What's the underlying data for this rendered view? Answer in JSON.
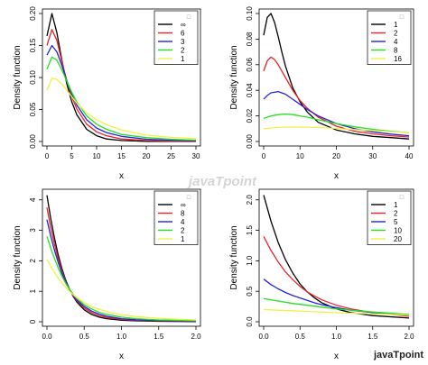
{
  "watermark": {
    "center_text": "javaTpoint",
    "corner_text": "javaTpoint"
  },
  "colors": {
    "black": "#000000",
    "red": "#e8232a",
    "blue": "#2424d6",
    "green": "#22e022",
    "yellow": "#f0f04a",
    "light_green": "#7ae07a"
  },
  "chart_data": [
    {
      "type": "line",
      "xlabel": "x",
      "ylabel": "Density function",
      "xlim": [
        0,
        30
      ],
      "ylim": [
        0,
        0.2
      ],
      "xticks": [
        "0",
        "5",
        "10",
        "15",
        "20",
        "25",
        "30"
      ],
      "yticks": [
        "0.00",
        "0.05",
        "0.10",
        "0.15",
        "0.20"
      ],
      "legend_title": "□",
      "legend_position": "top-right",
      "series": [
        {
          "name": "∞",
          "color": "#000000",
          "x": [
            0,
            1,
            2,
            3,
            4,
            5,
            6,
            8,
            10,
            12,
            15,
            20,
            25,
            30
          ],
          "y": [
            0.165,
            0.2,
            0.17,
            0.127,
            0.09,
            0.062,
            0.042,
            0.019,
            0.009,
            0.004,
            0.0015,
            0.0003,
            0.0001,
            0.0
          ]
        },
        {
          "name": "6",
          "color": "#e8232a",
          "x": [
            0,
            1,
            2,
            3,
            4,
            5,
            6,
            8,
            10,
            12,
            15,
            20,
            25,
            30
          ],
          "y": [
            0.15,
            0.175,
            0.158,
            0.125,
            0.095,
            0.07,
            0.051,
            0.027,
            0.015,
            0.009,
            0.004,
            0.0015,
            0.0007,
            0.0003
          ]
        },
        {
          "name": "3",
          "color": "#2424d6",
          "x": [
            0,
            1,
            2,
            3,
            4,
            5,
            6,
            8,
            10,
            12,
            15,
            20,
            25,
            30
          ],
          "y": [
            0.135,
            0.15,
            0.14,
            0.119,
            0.095,
            0.074,
            0.057,
            0.034,
            0.021,
            0.014,
            0.008,
            0.0035,
            0.002,
            0.001
          ]
        },
        {
          "name": "2",
          "color": "#22e022",
          "x": [
            0,
            1,
            2,
            3,
            4,
            5,
            6,
            8,
            10,
            12,
            15,
            20,
            25,
            30
          ],
          "y": [
            0.113,
            0.132,
            0.127,
            0.112,
            0.094,
            0.077,
            0.062,
            0.04,
            0.027,
            0.019,
            0.011,
            0.006,
            0.0035,
            0.002
          ]
        },
        {
          "name": "1",
          "color": "#f0f04a",
          "x": [
            0,
            1,
            2,
            3,
            4,
            5,
            6,
            8,
            10,
            12,
            15,
            20,
            25,
            30
          ],
          "y": [
            0.08,
            0.099,
            0.097,
            0.09,
            0.08,
            0.07,
            0.06,
            0.045,
            0.034,
            0.026,
            0.018,
            0.01,
            0.0065,
            0.0045
          ]
        }
      ]
    },
    {
      "type": "line",
      "xlabel": "x",
      "ylabel": "Density function",
      "xlim": [
        0,
        40
      ],
      "ylim": [
        0,
        0.1
      ],
      "xticks": [
        "0",
        "10",
        "20",
        "30",
        "40"
      ],
      "yticks": [
        "0.00",
        "0.02",
        "0.04",
        "0.06",
        "0.08",
        "0.10"
      ],
      "legend_title": "□",
      "legend_position": "top-right",
      "series": [
        {
          "name": "1",
          "color": "#000000",
          "x": [
            0,
            1,
            2,
            3,
            4,
            5,
            6,
            8,
            10,
            12,
            15,
            20,
            25,
            30,
            35,
            40
          ],
          "y": [
            0.083,
            0.097,
            0.1,
            0.093,
            0.082,
            0.07,
            0.059,
            0.042,
            0.031,
            0.023,
            0.015,
            0.009,
            0.006,
            0.004,
            0.003,
            0.002
          ]
        },
        {
          "name": "2",
          "color": "#e8232a",
          "x": [
            0,
            1,
            2,
            3,
            4,
            5,
            6,
            8,
            10,
            12,
            15,
            20,
            25,
            30,
            35,
            40
          ],
          "y": [
            0.055,
            0.063,
            0.066,
            0.064,
            0.06,
            0.055,
            0.05,
            0.04,
            0.032,
            0.026,
            0.019,
            0.012,
            0.008,
            0.006,
            0.0045,
            0.0035
          ]
        },
        {
          "name": "4",
          "color": "#2424d6",
          "x": [
            0,
            1,
            2,
            4,
            6,
            8,
            10,
            12,
            15,
            20,
            25,
            30,
            35,
            40
          ],
          "y": [
            0.033,
            0.036,
            0.038,
            0.039,
            0.037,
            0.033,
            0.029,
            0.025,
            0.02,
            0.014,
            0.01,
            0.0075,
            0.0058,
            0.0045
          ]
        },
        {
          "name": "8",
          "color": "#22e022",
          "x": [
            0,
            2,
            4,
            6,
            8,
            10,
            12,
            15,
            20,
            25,
            30,
            35,
            40
          ],
          "y": [
            0.018,
            0.02,
            0.021,
            0.0215,
            0.021,
            0.02,
            0.019,
            0.017,
            0.014,
            0.0115,
            0.0095,
            0.008,
            0.0068
          ]
        },
        {
          "name": "16",
          "color": "#f0f04a",
          "x": [
            0,
            2,
            4,
            6,
            8,
            10,
            12,
            15,
            20,
            25,
            30,
            35,
            40
          ],
          "y": [
            0.01,
            0.0105,
            0.011,
            0.0112,
            0.0113,
            0.0113,
            0.0112,
            0.011,
            0.0102,
            0.0093,
            0.0085,
            0.0077,
            0.007
          ]
        }
      ]
    },
    {
      "type": "line",
      "xlabel": "x",
      "ylabel": "Density function",
      "xlim": [
        0,
        2
      ],
      "ylim": [
        0,
        4.2
      ],
      "xticks": [
        "0.0",
        "0.5",
        "1.0",
        "1.5",
        "2.0"
      ],
      "yticks": [
        "0",
        "1",
        "2",
        "3",
        "4"
      ],
      "legend_title": "□",
      "legend_position": "top-right",
      "series": [
        {
          "name": "∞",
          "color": "#000000",
          "x": [
            0,
            0.05,
            0.1,
            0.15,
            0.2,
            0.25,
            0.3,
            0.35,
            0.4,
            0.5,
            0.6,
            0.7,
            0.8,
            1.0,
            1.2,
            1.5,
            2.0
          ],
          "y": [
            4.15,
            3.4,
            2.75,
            2.2,
            1.75,
            1.38,
            1.08,
            0.84,
            0.65,
            0.39,
            0.24,
            0.15,
            0.1,
            0.05,
            0.03,
            0.015,
            0.005
          ]
        },
        {
          "name": "8",
          "color": "#e8232a",
          "x": [
            0,
            0.05,
            0.1,
            0.15,
            0.2,
            0.25,
            0.3,
            0.35,
            0.4,
            0.5,
            0.6,
            0.7,
            0.8,
            1.0,
            1.2,
            1.5,
            2.0
          ],
          "y": [
            3.75,
            3.1,
            2.55,
            2.07,
            1.67,
            1.34,
            1.07,
            0.86,
            0.69,
            0.45,
            0.3,
            0.2,
            0.14,
            0.08,
            0.05,
            0.03,
            0.015
          ]
        },
        {
          "name": "4",
          "color": "#2424d6",
          "x": [
            0,
            0.05,
            0.1,
            0.15,
            0.2,
            0.25,
            0.3,
            0.35,
            0.4,
            0.5,
            0.6,
            0.7,
            0.8,
            1.0,
            1.2,
            1.5,
            2.0
          ],
          "y": [
            3.35,
            2.82,
            2.35,
            1.95,
            1.6,
            1.31,
            1.07,
            0.88,
            0.72,
            0.5,
            0.35,
            0.25,
            0.18,
            0.1,
            0.065,
            0.04,
            0.02
          ]
        },
        {
          "name": "2",
          "color": "#22e022",
          "x": [
            0,
            0.05,
            0.1,
            0.15,
            0.2,
            0.25,
            0.3,
            0.35,
            0.4,
            0.5,
            0.6,
            0.7,
            0.8,
            1.0,
            1.2,
            1.5,
            2.0
          ],
          "y": [
            2.8,
            2.42,
            2.08,
            1.77,
            1.5,
            1.27,
            1.07,
            0.91,
            0.77,
            0.56,
            0.42,
            0.31,
            0.24,
            0.15,
            0.1,
            0.06,
            0.035
          ]
        },
        {
          "name": "1",
          "color": "#f0f04a",
          "x": [
            0,
            0.05,
            0.1,
            0.15,
            0.2,
            0.25,
            0.3,
            0.35,
            0.4,
            0.5,
            0.6,
            0.7,
            0.8,
            1.0,
            1.2,
            1.5,
            2.0
          ],
          "y": [
            2.05,
            1.82,
            1.62,
            1.43,
            1.27,
            1.13,
            1.0,
            0.89,
            0.79,
            0.63,
            0.5,
            0.41,
            0.33,
            0.23,
            0.17,
            0.11,
            0.06
          ]
        }
      ]
    },
    {
      "type": "line",
      "xlabel": "x",
      "ylabel": "Density function",
      "xlim": [
        0,
        2
      ],
      "ylim": [
        0,
        2.1
      ],
      "xticks": [
        "0.0",
        "0.5",
        "1.0",
        "1.5",
        "2.0"
      ],
      "yticks": [
        "0.0",
        "0.5",
        "1.0",
        "1.5",
        "2.0"
      ],
      "legend_title": "□",
      "legend_position": "top-right",
      "series": [
        {
          "name": "1",
          "color": "#000000",
          "x": [
            0,
            0.1,
            0.2,
            0.3,
            0.4,
            0.5,
            0.6,
            0.7,
            0.8,
            1.0,
            1.2,
            1.5,
            2.0
          ],
          "y": [
            2.08,
            1.65,
            1.3,
            1.02,
            0.8,
            0.62,
            0.49,
            0.39,
            0.31,
            0.21,
            0.15,
            0.1,
            0.06
          ]
        },
        {
          "name": "2",
          "color": "#e8232a",
          "x": [
            0,
            0.1,
            0.2,
            0.3,
            0.4,
            0.5,
            0.6,
            0.7,
            0.8,
            1.0,
            1.2,
            1.5,
            2.0
          ],
          "y": [
            1.4,
            1.17,
            0.98,
            0.82,
            0.69,
            0.58,
            0.49,
            0.42,
            0.36,
            0.27,
            0.21,
            0.15,
            0.09
          ]
        },
        {
          "name": "5",
          "color": "#2424d6",
          "x": [
            0,
            0.1,
            0.2,
            0.3,
            0.4,
            0.5,
            0.6,
            0.7,
            0.8,
            1.0,
            1.2,
            1.5,
            2.0
          ],
          "y": [
            0.7,
            0.61,
            0.54,
            0.48,
            0.43,
            0.39,
            0.35,
            0.31,
            0.28,
            0.23,
            0.19,
            0.15,
            0.11
          ]
        },
        {
          "name": "10",
          "color": "#22e022",
          "x": [
            0,
            0.2,
            0.4,
            0.6,
            0.8,
            1.0,
            1.2,
            1.5,
            2.0
          ],
          "y": [
            0.38,
            0.34,
            0.3,
            0.27,
            0.24,
            0.21,
            0.19,
            0.16,
            0.12
          ]
        },
        {
          "name": "20",
          "color": "#f0f04a",
          "x": [
            0,
            0.2,
            0.4,
            0.6,
            0.8,
            1.0,
            1.2,
            1.5,
            2.0
          ],
          "y": [
            0.2,
            0.19,
            0.18,
            0.17,
            0.16,
            0.15,
            0.14,
            0.13,
            0.11
          ]
        }
      ]
    }
  ]
}
